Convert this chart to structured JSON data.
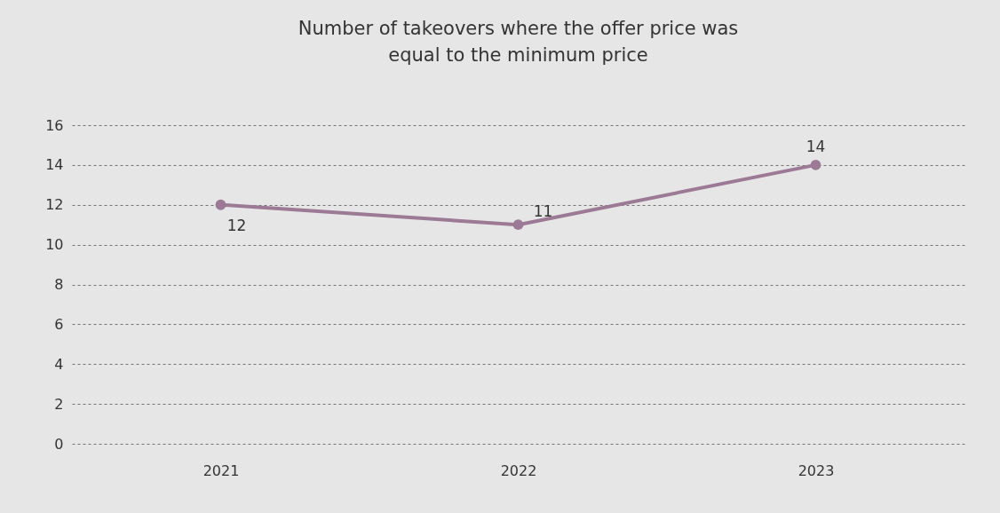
{
  "chart_data": {
    "type": "line",
    "title": "Number of takeovers where the offer price was equal to the minimum price",
    "categories": [
      "2021",
      "2022",
      "2023"
    ],
    "series": [
      {
        "color": "#9c7a96",
        "values": [
          12,
          11,
          14
        ]
      }
    ],
    "ylim": [
      0,
      16
    ],
    "yticks": [
      0,
      2,
      4,
      6,
      8,
      10,
      12,
      14,
      16
    ],
    "grid": "y",
    "marker": "circle",
    "line_style": "solid",
    "data_labels": true
  }
}
